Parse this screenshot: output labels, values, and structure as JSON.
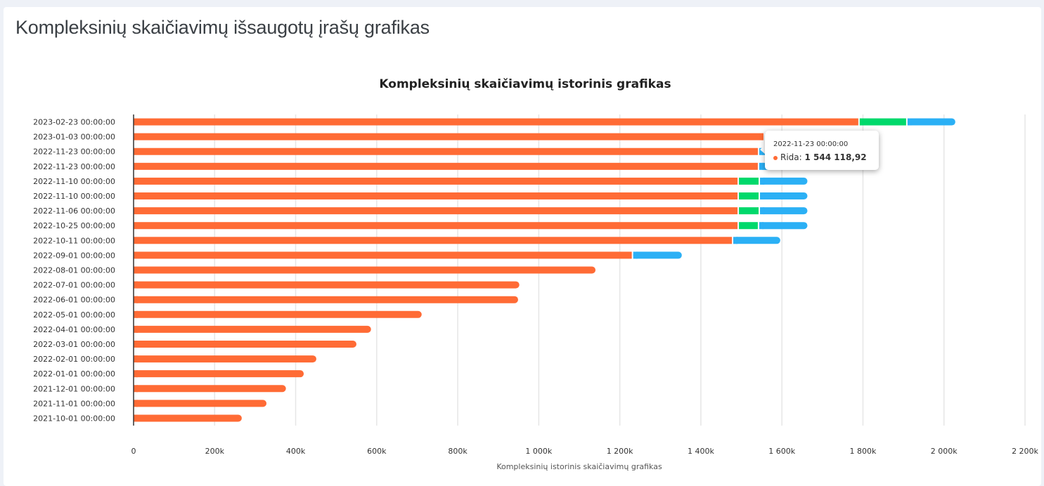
{
  "page": {
    "title": "Kompleksinių skaičiavimų išsaugotų įrašų grafikas"
  },
  "chart_data": {
    "type": "bar",
    "orientation": "horizontal",
    "stacked": true,
    "title": "Kompleksinių skaičiavimų istorinis grafikas",
    "xlabel": "Kompleksinių istorinis skaičiavimų grafikas",
    "ylabel": "",
    "xlim": [
      0,
      2200000
    ],
    "xticks": [
      0,
      200000,
      400000,
      600000,
      800000,
      1000000,
      1200000,
      1400000,
      1600000,
      1800000,
      2000000,
      2200000
    ],
    "xtick_labels": [
      "0",
      "200k",
      "400k",
      "600k",
      "800k",
      "1 000k",
      "1 200k",
      "1 400k",
      "1 600k",
      "1 800k",
      "2 000k",
      "2 200k"
    ],
    "grid": true,
    "categories": [
      "2023-02-23 00:00:00",
      "2023-01-03 00:00:00",
      "2022-11-23 00:00:00",
      "2022-11-23 00:00:00",
      "2022-11-10 00:00:00",
      "2022-11-10 00:00:00",
      "2022-11-06 00:00:00",
      "2022-10-25 00:00:00",
      "2022-10-11 00:00:00",
      "2022-09-01 00:00:00",
      "2022-08-01 00:00:00",
      "2022-07-01 00:00:00",
      "2022-06-01 00:00:00",
      "2022-05-01 00:00:00",
      "2022-04-01 00:00:00",
      "2022-03-01 00:00:00",
      "2022-02-01 00:00:00",
      "2022-01-01 00:00:00",
      "2021-12-01 00:00:00",
      "2021-11-01 00:00:00",
      "2021-10-01 00:00:00"
    ],
    "series": [
      {
        "name": "Rida",
        "color": "#ff6b35",
        "values": [
          1792000,
          1558000,
          1544118.92,
          1544000,
          1494000,
          1494000,
          1494000,
          1494000,
          1480000,
          1233000,
          1140000,
          952000,
          949000,
          711000,
          586000,
          550000,
          451000,
          420000,
          376000,
          328000,
          267000
        ]
      },
      {
        "color": "#00d96b",
        "values": [
          118000,
          0,
          0,
          0,
          52000,
          52000,
          52000,
          50000,
          0,
          0,
          0,
          0,
          0,
          0,
          0,
          0,
          0,
          0,
          0,
          0,
          0
        ]
      },
      {
        "color": "#2bb0f5",
        "values": [
          118000,
          117000,
          117000,
          117000,
          117000,
          117000,
          117000,
          119000,
          116000,
          120000,
          0,
          0,
          0,
          0,
          0,
          0,
          0,
          0,
          0,
          0,
          0
        ]
      }
    ]
  },
  "tooltip": {
    "date": "2022-11-23 00:00:00",
    "series": "Rida:",
    "value": "1 544 118,92",
    "color": "#ff6b35"
  }
}
